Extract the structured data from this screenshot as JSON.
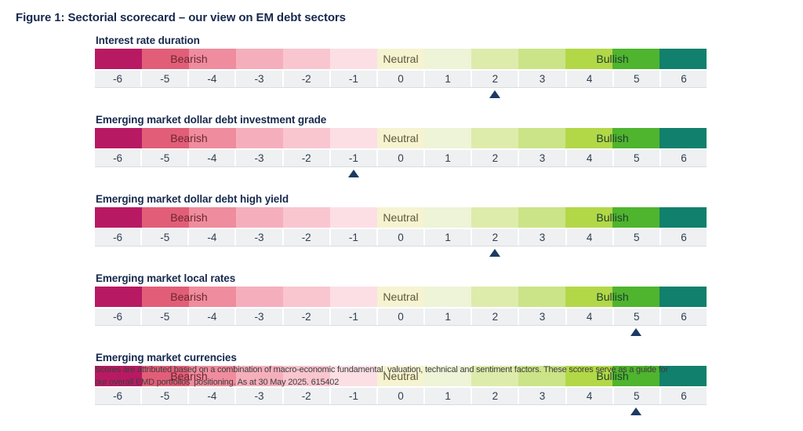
{
  "figure_title": "Figure 1: Sectorial scorecard – our view on EM debt sectors",
  "chart_data": {
    "type": "heatmap",
    "title": "Figure 1: Sectorial scorecard – our view on EM debt sectors",
    "scale": {
      "min": -6,
      "max": 6,
      "ticks": [
        "-6",
        "-5",
        "-4",
        "-3",
        "-2",
        "-1",
        "0",
        "1",
        "2",
        "3",
        "4",
        "5",
        "6"
      ]
    },
    "zone_labels": [
      {
        "label": "Bearish",
        "position_pct": 15.3846,
        "color": "#6b2631"
      },
      {
        "label": "Neutral",
        "position_pct": 50,
        "color": "#5c5838"
      },
      {
        "label": "Bullish",
        "position_pct": 84.6154,
        "color": "#1d4030"
      }
    ],
    "cell_colors": [
      "#b81963",
      "#e25e78",
      "#ef8c9d",
      "#f5afbc",
      "#f9c6d0",
      "#fcdfe5",
      "#f6f3d1",
      "#edf4d7",
      "#ddecab",
      "#cbe488",
      "#b2d848",
      "#4fb42e",
      "#11806c"
    ],
    "marker_color": "#1b3a63",
    "sections": [
      {
        "title": "Interest rate duration",
        "score": 2
      },
      {
        "title": "Emerging market dollar debt investment grade",
        "score": -1
      },
      {
        "title": "Emerging market dollar debt high yield",
        "score": 2
      },
      {
        "title": "Emerging market local rates",
        "score": 5
      },
      {
        "title": "Emerging market currencies",
        "score": 5
      }
    ]
  },
  "footnote_lines": [
    "Scores are attributed based on a combination of macro-economic fundamental, valuation, technical and sentiment factors. These scores serve as a guide for",
    "our overall EMD portfolios' positioning. As at 30 May 2025. 615402"
  ]
}
